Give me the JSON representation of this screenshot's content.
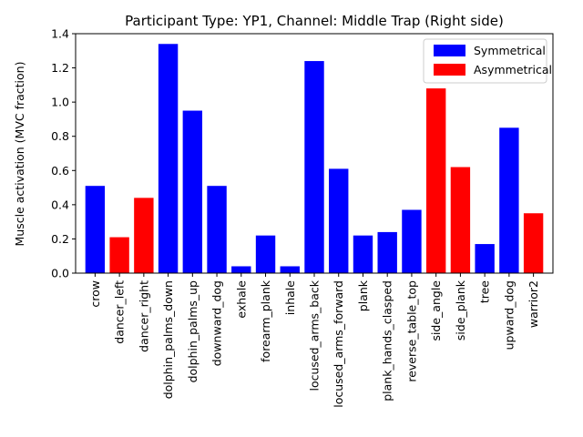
{
  "chart_data": {
    "type": "bar",
    "title": "Participant Type: YP1, Channel: Middle Trap (Right side)",
    "xlabel": "",
    "ylabel": "Muscle activation (MVC fraction)",
    "ylim": [
      0,
      1.4
    ],
    "yticks": [
      0.0,
      0.2,
      0.4,
      0.6,
      0.8,
      1.0,
      1.2,
      1.4
    ],
    "ytick_labels": [
      "0.0",
      "0.2",
      "0.4",
      "0.6",
      "0.8",
      "1.0",
      "1.2",
      "1.4"
    ],
    "categories": [
      "crow",
      "dancer_left",
      "dancer_right",
      "dolphin_palms_down",
      "dolphin_palms_up",
      "downward_dog",
      "exhale",
      "forearm_plank",
      "inhale",
      "locused_arms_back",
      "locused_arms_forward",
      "plank",
      "plank_hands_clasped",
      "reverse_table_top",
      "side_angle",
      "side_plank",
      "tree",
      "upward_dog",
      "warrior2"
    ],
    "values": [
      0.51,
      0.21,
      0.44,
      1.34,
      0.95,
      0.51,
      0.04,
      0.22,
      0.04,
      1.24,
      0.61,
      0.22,
      0.24,
      0.37,
      1.08,
      0.62,
      0.17,
      0.85,
      0.35
    ],
    "groups": [
      "Symmetrical",
      "Asymmetrical",
      "Asymmetrical",
      "Symmetrical",
      "Symmetrical",
      "Symmetrical",
      "Symmetrical",
      "Symmetrical",
      "Symmetrical",
      "Symmetrical",
      "Symmetrical",
      "Symmetrical",
      "Symmetrical",
      "Symmetrical",
      "Asymmetrical",
      "Asymmetrical",
      "Symmetrical",
      "Symmetrical",
      "Asymmetrical"
    ],
    "legend": {
      "placement": "top-right",
      "entries": [
        {
          "label": "Symmetrical",
          "color": "#0000ff"
        },
        {
          "label": "Asymmetrical",
          "color": "#ff0000"
        }
      ]
    },
    "grid": false
  }
}
